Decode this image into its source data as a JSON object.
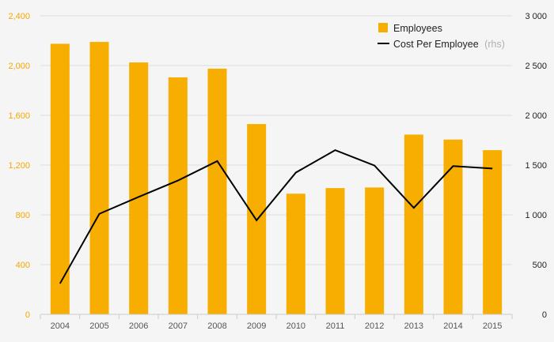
{
  "colors": {
    "background": "#f5f5f5",
    "bar": "#f7ae00",
    "line": "#000000",
    "left_axis_text": "#f5a800",
    "right_axis_text": "#222222",
    "grid": "#dddddd"
  },
  "legend": {
    "employees": "Employees",
    "cost": "Cost Per Employee",
    "cost_suffix": "(rhs)",
    "placement": "top-right"
  },
  "chart_data": {
    "type": "bar",
    "categories": [
      "2004",
      "2005",
      "2006",
      "2007",
      "2008",
      "2009",
      "2010",
      "2011",
      "2012",
      "2013",
      "2014",
      "2015"
    ],
    "series": [
      {
        "name": "Employees",
        "type": "bar",
        "axis": "left",
        "values": [
          2175,
          2190,
          2025,
          1905,
          1975,
          1530,
          970,
          1015,
          1020,
          1445,
          1405,
          1320
        ]
      },
      {
        "name": "Cost Per Employee",
        "type": "line",
        "axis": "right",
        "values": [
          310,
          1010,
          1180,
          1345,
          1540,
          945,
          1425,
          1650,
          1495,
          1070,
          1490,
          1465
        ]
      }
    ],
    "y_left": {
      "ylim": [
        0,
        2400
      ],
      "ticks": [
        0,
        400,
        800,
        1200,
        1600,
        2000,
        2400
      ],
      "tick_labels": [
        "0",
        "400",
        "800",
        "1,200",
        "1,600",
        "2,000",
        "2,400"
      ]
    },
    "y_right": {
      "ylim": [
        0,
        3000
      ],
      "ticks": [
        0,
        500,
        1000,
        1500,
        2000,
        2500,
        3000
      ],
      "tick_labels": [
        "0",
        "500",
        "1 000",
        "1 500",
        "2 000",
        "2 500",
        "3 000"
      ]
    },
    "grid": true,
    "title": "",
    "xlabel": "",
    "ylabel": ""
  }
}
